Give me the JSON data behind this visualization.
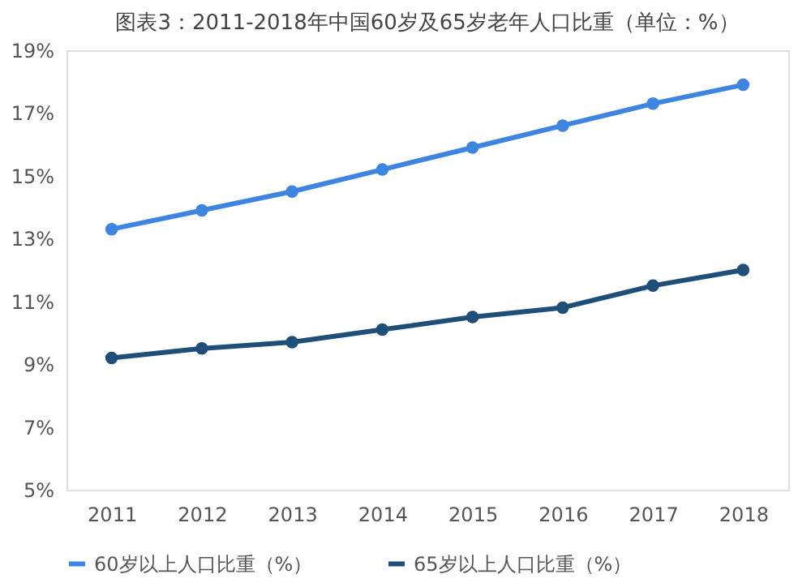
{
  "chart_data": {
    "type": "line",
    "title": "图表3：2011-2018年中国60岁及65岁老年人口比重（单位：%）",
    "categories": [
      "2011",
      "2012",
      "2013",
      "2014",
      "2015",
      "2016",
      "2017",
      "2018"
    ],
    "series": [
      {
        "name": "60岁以上人口比重（%）",
        "color": "#3d85e0",
        "values": [
          13.3,
          13.9,
          14.5,
          15.2,
          15.9,
          16.6,
          17.3,
          17.9
        ]
      },
      {
        "name": "65岁以上人口比重（%）",
        "color": "#1f4e79",
        "values": [
          9.2,
          9.5,
          9.7,
          10.1,
          10.5,
          10.8,
          11.5,
          12.0
        ]
      }
    ],
    "ylim": [
      5,
      19
    ],
    "yticks": [
      {
        "value": 5,
        "label": "5%"
      },
      {
        "value": 7,
        "label": "7%"
      },
      {
        "value": 9,
        "label": "9%"
      },
      {
        "value": 11,
        "label": "11%"
      },
      {
        "value": 13,
        "label": "13%"
      },
      {
        "value": 15,
        "label": "15%"
      },
      {
        "value": 17,
        "label": "17%"
      },
      {
        "value": 19,
        "label": "19%"
      }
    ],
    "grid": false,
    "legend": "bottom",
    "marker": "circle",
    "line_style": "solid"
  }
}
